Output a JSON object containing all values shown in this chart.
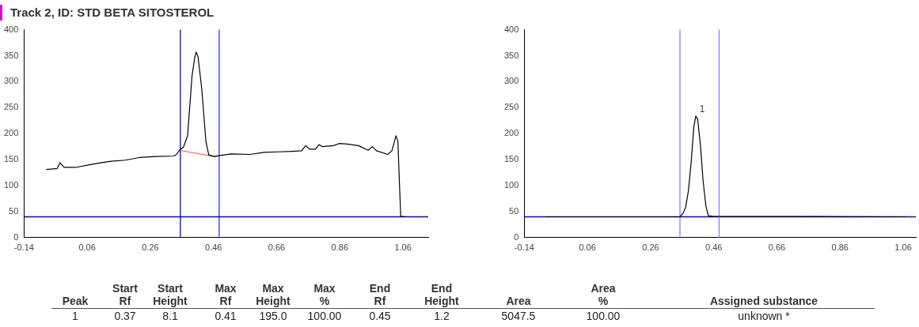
{
  "chart_data": [
    {
      "type": "line",
      "title": "Track 2, ID: STD BETA SITOSTEROL",
      "xlim": [
        -0.14,
        1.14
      ],
      "ylim": [
        0,
        400
      ],
      "xticks": [
        -0.14,
        0.06,
        0.26,
        0.46,
        0.66,
        0.86,
        1.06
      ],
      "yticks": [
        0,
        50,
        100,
        150,
        200,
        250,
        300,
        350,
        400
      ],
      "grid": false,
      "legend": false,
      "marker": "none",
      "line_style": "solid",
      "series": [
        {
          "color": "#000000",
          "x": [
            -0.07,
            -0.035,
            -0.026,
            -0.013,
            0.023,
            0.067,
            0.102,
            0.137,
            0.181,
            0.225,
            0.278,
            0.335,
            0.343,
            0.352,
            0.365,
            0.378,
            0.392,
            0.401,
            0.405,
            0.411,
            0.423,
            0.436,
            0.445,
            0.462,
            0.48,
            0.515,
            0.576,
            0.62,
            0.664,
            0.708,
            0.739,
            0.752,
            0.765,
            0.783,
            0.794,
            0.805,
            0.84,
            0.858,
            0.884,
            0.919,
            0.95,
            0.963,
            0.976,
            1.012,
            1.025,
            1.038,
            1.044,
            1.049,
            1.053,
            1.069
          ],
          "values": [
            131,
            133,
            144,
            135,
            135,
            140,
            144,
            147,
            149,
            154,
            156,
            157,
            160,
            168,
            174,
            196,
            311,
            348,
            357,
            348,
            285,
            185,
            159,
            156,
            158,
            161,
            160,
            164,
            165,
            166,
            167,
            177,
            170,
            170,
            179,
            175,
            177,
            181,
            180,
            177,
            168,
            175,
            167,
            160,
            167,
            196,
            185,
            101,
            41,
            40
          ]
        },
        {
          "color": "#ff6060",
          "x": [
            0.352,
            0.462,
            0.48
          ],
          "values": [
            168,
            156,
            158
          ]
        }
      ],
      "ref_lines": [
        {
          "axis": "x",
          "value": 0.355,
          "color": "#0000ff"
        },
        {
          "axis": "x",
          "value": 0.478,
          "color": "#3030ff"
        },
        {
          "axis": "y",
          "value": 40,
          "color": "#0000ff"
        }
      ]
    },
    {
      "type": "line",
      "xlim": [
        -0.14,
        1.1
      ],
      "ylim": [
        0,
        400
      ],
      "xticks": [
        -0.14,
        0.06,
        0.26,
        0.46,
        0.66,
        0.86,
        1.06
      ],
      "yticks": [
        0,
        50,
        100,
        150,
        200,
        250,
        300,
        350,
        400
      ],
      "grid": false,
      "legend": false,
      "marker": "none",
      "line_style": "solid",
      "series": [
        {
          "color": "#000000",
          "x": [
            -0.072,
            0.353,
            0.363,
            0.371,
            0.38,
            0.388,
            0.397,
            0.403,
            0.409,
            0.418,
            0.426,
            0.435,
            0.443,
            0.456,
            1.068
          ],
          "values": [
            40,
            40,
            47,
            58,
            91,
            142,
            213,
            234,
            228,
            177,
            111,
            61,
            42,
            41,
            40
          ]
        }
      ],
      "ref_lines": [
        {
          "axis": "y",
          "value": 40,
          "color": "#0000ff"
        },
        {
          "axis": "x",
          "value": 0.353,
          "color": "#8080ff"
        },
        {
          "axis": "x",
          "value": 0.477,
          "color": "#8080ff"
        }
      ],
      "annotations": [
        {
          "text": "1",
          "x": 0.41,
          "y": 234
        }
      ]
    },
    {
      "type": "other",
      "annotations": [
        "Peak",
        "Start\nRf",
        "Start\nHeight",
        "Max\nRf",
        "Max\nHeight",
        "Max\n%",
        "End\nRf",
        "End\nHeight",
        "Area",
        "Area\n%",
        "Assigned substance",
        "1",
        "0.37",
        "8.1",
        "0.41",
        "195.0",
        "100.00",
        "0.45",
        "1.2",
        "5047.5",
        "100.00",
        "unknown *"
      ]
    }
  ]
}
